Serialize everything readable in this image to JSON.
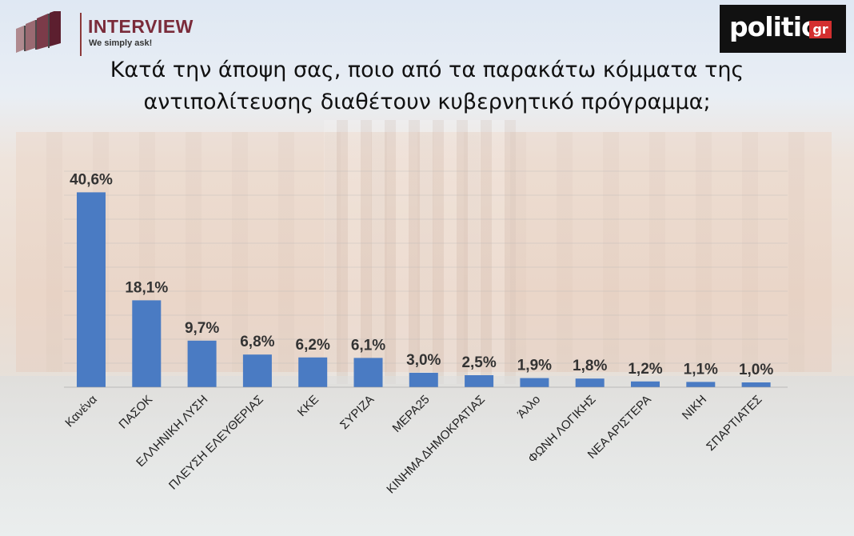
{
  "header": {
    "brand": "INTERVIEW",
    "tagline": "We simply ask!",
    "partner": "politic",
    "partner_suffix": "gr"
  },
  "title_lines": [
    "Κατά την άποψη σας, ποιο από τα παρακάτω κόμματα της",
    "αντιπολίτευσης διαθέτουν κυβερνητικό πρόγραμμα;"
  ],
  "chart_data": {
    "type": "bar",
    "title": "Κατά την άποψη σας, ποιο από τα παρακάτω κόμματα της αντιπολίτευσης διαθέτουν κυβερνητικό πρόγραμμα;",
    "categories": [
      "Κανένα",
      "ΠΑΣΟΚ",
      "ΕΛΛΗΝΙΚΗ ΛΥΣΗ",
      "ΠΛΕΥΣΗ ΕΛΕΥΘΕΡΙΑΣ",
      "ΚΚΕ",
      "ΣΥΡΙΖΑ",
      "ΜΕΡΑ25",
      "ΚΙΝΗΜΑ ΔΗΜΟΚΡΑΤΙΑΣ",
      "Άλλο",
      "ΦΩΝΗ ΛΟΓΙΚΗΣ",
      "ΝΕΑ ΑΡΙΣΤΕΡΑ",
      "ΝΙΚΗ",
      "ΣΠΑΡΤΙΑΤΕΣ"
    ],
    "values": [
      40.6,
      18.1,
      9.7,
      6.8,
      6.2,
      6.1,
      3.0,
      2.5,
      1.9,
      1.8,
      1.2,
      1.1,
      1.0
    ],
    "labels": [
      "40,6%",
      "18,1%",
      "9,7%",
      "6,8%",
      "6,2%",
      "6,1%",
      "3,0%",
      "2,5%",
      "1,9%",
      "1,8%",
      "1,2%",
      "1,1%",
      "1,0%"
    ],
    "ylim": [
      0,
      45
    ],
    "bar_color": "#4a7bc3",
    "grid": true
  }
}
